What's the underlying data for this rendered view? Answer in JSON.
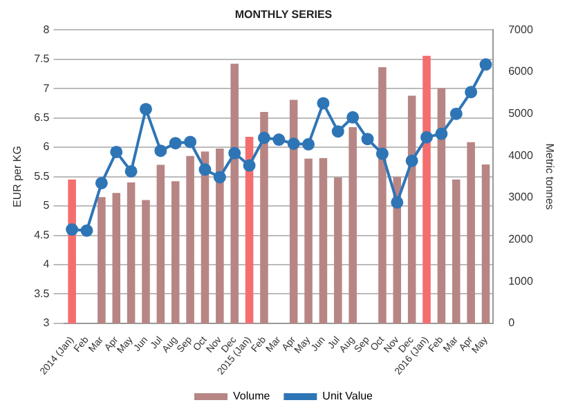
{
  "chart_data": {
    "type": "bar",
    "title": "MONTHLY SERIES",
    "ylabel": "EUR per KG",
    "y2label": "Metric tonnes",
    "categories": [
      "2014 (Jan)",
      "Feb",
      "Mar",
      "Apr",
      "May",
      "Jun",
      "Jul",
      "Aug",
      "Sep",
      "Oct",
      "Nov",
      "Dec",
      "2015 (Jan)",
      "Feb",
      "Mar",
      "Apr",
      "May",
      "Jun",
      "Jul",
      "Aug",
      "Sep",
      "Oct",
      "Nov",
      "Dec",
      "2016 (Jan)",
      "Feb",
      "Mar",
      "Apr",
      "May"
    ],
    "series": [
      {
        "name": "Volume",
        "axis": "y2",
        "color": "#b88585",
        "colors": [
          "#f46e6e",
          "#b88585",
          "#b88585",
          "#b88585",
          "#b88585",
          "#b88585",
          "#b88585",
          "#b88585",
          "#b88585",
          "#b88585",
          "#b88585",
          "#b88585",
          "#f46e6e",
          "#b88585",
          "#b88585",
          "#b88585",
          "#b88585",
          "#b88585",
          "#b88585",
          "#b88585",
          "#b88585",
          "#b88585",
          "#b88585",
          "#b88585",
          "#f46e6e",
          "#b88585",
          "#b88585",
          "#b88585",
          "#b88585"
        ],
        "values": [
          3430,
          null,
          3010,
          3110,
          3360,
          2940,
          3780,
          3390,
          3990,
          4100,
          4170,
          6190,
          4450,
          5040,
          null,
          5330,
          3930,
          3940,
          3480,
          4680,
          null,
          6110,
          3490,
          5430,
          6380,
          5610,
          3430,
          4320,
          3790
        ]
      },
      {
        "name": "Unit Value",
        "type": "line",
        "color": "#2e75b6",
        "values": [
          4.6,
          4.58,
          5.39,
          5.92,
          5.59,
          6.65,
          5.94,
          6.07,
          6.09,
          5.62,
          5.49,
          5.9,
          5.69,
          6.16,
          6.13,
          6.06,
          6.05,
          6.75,
          6.27,
          6.51,
          6.14,
          5.89,
          5.06,
          5.77,
          6.17,
          6.23,
          6.57,
          6.94,
          7.41
        ]
      }
    ],
    "ylim": [
      3,
      8
    ],
    "yticks": [
      3,
      3.5,
      4,
      4.5,
      5,
      5.5,
      6,
      6.5,
      7,
      7.5,
      8
    ],
    "y2lim": [
      0,
      7000
    ],
    "y2ticks": [
      0,
      1000,
      2000,
      3000,
      4000,
      5000,
      6000,
      7000
    ],
    "grid": "y",
    "legend": "bottom",
    "marker": "circle",
    "line_style": "solid"
  }
}
